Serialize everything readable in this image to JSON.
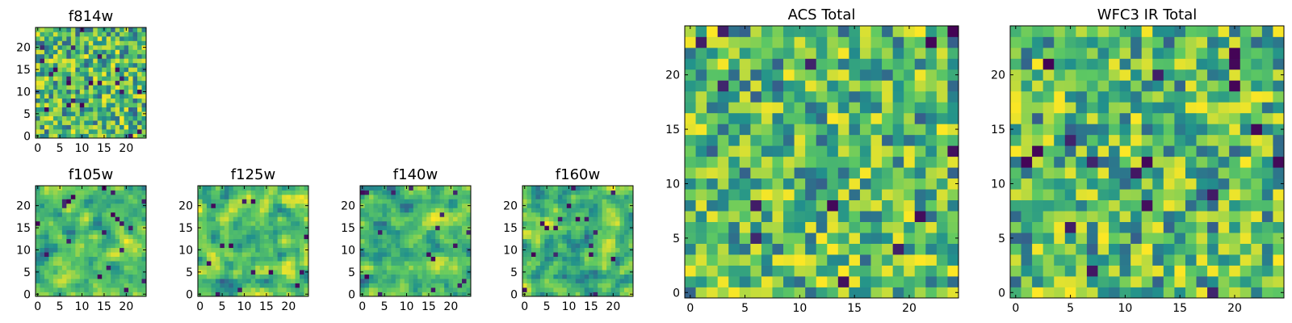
{
  "colormap": [
    "#440154",
    "#3b528b",
    "#21918c",
    "#5ec962",
    "#fde725"
  ],
  "chart_data": [
    {
      "id": "f814w",
      "type": "heatmap",
      "title": "f814w",
      "grid": [
        25,
        25
      ],
      "xlim": [
        0,
        25
      ],
      "ylim": [
        0,
        25
      ],
      "xticks": [
        0,
        5,
        10,
        15,
        20
      ],
      "yticks": [
        0,
        5,
        10,
        15,
        20
      ],
      "seed": 814,
      "smooth": false
    },
    {
      "id": "f105w",
      "type": "heatmap",
      "title": "f105w",
      "grid": [
        25,
        25
      ],
      "xlim": [
        0,
        25
      ],
      "ylim": [
        0,
        25
      ],
      "xticks": [
        0,
        5,
        10,
        15,
        20
      ],
      "yticks": [
        0,
        5,
        10,
        15,
        20
      ],
      "seed": 105,
      "smooth": true
    },
    {
      "id": "f125w",
      "type": "heatmap",
      "title": "f125w",
      "grid": [
        25,
        25
      ],
      "xlim": [
        0,
        25
      ],
      "ylim": [
        0,
        25
      ],
      "xticks": [
        0,
        5,
        10,
        15,
        20
      ],
      "yticks": [
        0,
        5,
        10,
        15,
        20
      ],
      "seed": 125,
      "smooth": true
    },
    {
      "id": "f140w",
      "type": "heatmap",
      "title": "f140w",
      "grid": [
        25,
        25
      ],
      "xlim": [
        0,
        25
      ],
      "ylim": [
        0,
        25
      ],
      "xticks": [
        0,
        5,
        10,
        15,
        20
      ],
      "yticks": [
        0,
        5,
        10,
        15,
        20
      ],
      "seed": 140,
      "smooth": true
    },
    {
      "id": "f160w",
      "type": "heatmap",
      "title": "f160w",
      "grid": [
        25,
        25
      ],
      "xlim": [
        0,
        25
      ],
      "ylim": [
        0,
        25
      ],
      "xticks": [
        0,
        5,
        10,
        15,
        20
      ],
      "yticks": [
        0,
        5,
        10,
        15,
        20
      ],
      "seed": 160,
      "smooth": true
    },
    {
      "id": "acs-total",
      "type": "heatmap",
      "title": "ACS Total",
      "grid": [
        25,
        25
      ],
      "xlim": [
        0,
        25
      ],
      "ylim": [
        0,
        25
      ],
      "xticks": [
        0,
        5,
        10,
        15,
        20
      ],
      "yticks": [
        0,
        5,
        10,
        15,
        20
      ],
      "seed": 2001,
      "smooth": false
    },
    {
      "id": "wfc3-ir-total",
      "type": "heatmap",
      "title": "WFC3 IR Total",
      "grid": [
        25,
        25
      ],
      "xlim": [
        0,
        25
      ],
      "ylim": [
        0,
        25
      ],
      "xticks": [
        0,
        5,
        10,
        15,
        20
      ],
      "yticks": [
        0,
        5,
        10,
        15,
        20
      ],
      "seed": 3003,
      "smooth": false
    }
  ]
}
